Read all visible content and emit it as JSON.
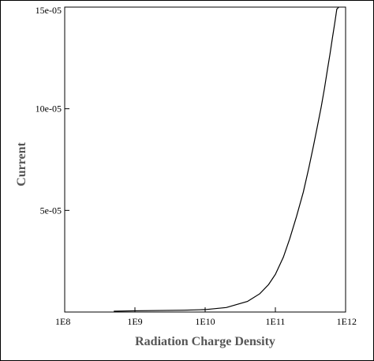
{
  "chart_data": {
    "type": "line",
    "title": "",
    "xlabel": "Radiation Charge Density",
    "ylabel": "Current",
    "x_scale": "log",
    "xlim": [
      100000000,
      1000000000000
    ],
    "ylim": [
      0,
      0.00015
    ],
    "grid": false,
    "x_ticks": [
      {
        "value": 100000000,
        "label": "1E8"
      },
      {
        "value": 1000000000,
        "label": "1E9"
      },
      {
        "value": 10000000000,
        "label": "1E10"
      },
      {
        "value": 100000000000,
        "label": "1E11"
      },
      {
        "value": 1000000000000,
        "label": "1E12"
      }
    ],
    "y_ticks": [
      {
        "value": 5e-05,
        "label": "5e-05"
      },
      {
        "value": 0.0001,
        "label": "10e-05"
      },
      {
        "value": 0.00015,
        "label": "15e-05"
      }
    ],
    "series": [
      {
        "color": "#000000",
        "x": [
          500000000,
          1000000000,
          5000000000,
          10000000000,
          20000000000,
          40000000000,
          60000000000,
          80000000000,
          100000000000,
          130000000000,
          160000000000,
          200000000000,
          250000000000,
          300000000000,
          350000000000,
          400000000000,
          450000000000,
          500000000000,
          550000000000,
          600000000000,
          650000000000,
          700000000000,
          750000000000,
          800000000000
        ],
        "y": [
          4e-07,
          6e-07,
          9e-07,
          1.2e-06,
          2.2e-06,
          5.2e-06,
          9e-06,
          1.35e-05,
          1.85e-05,
          2.7e-05,
          3.6e-05,
          4.7e-05,
          5.9e-05,
          7.1e-05,
          8.2e-05,
          9.2e-05,
          0.000101,
          0.00011,
          0.000119,
          0.000127,
          0.000135,
          0.000142,
          0.000149,
          0.000155
        ]
      }
    ]
  }
}
